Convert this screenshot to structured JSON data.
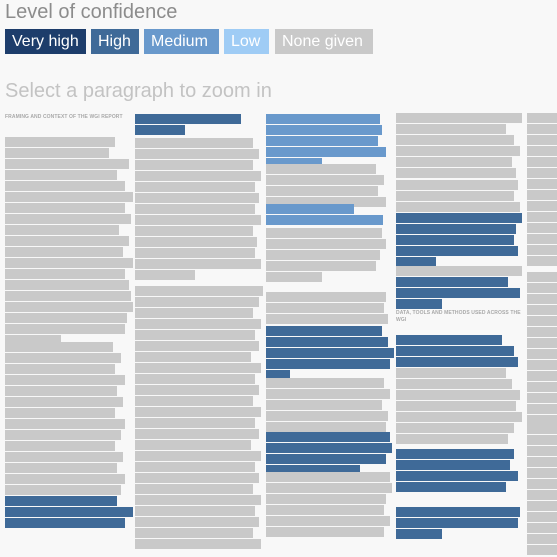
{
  "title": "Level of confidence",
  "prompt": "Select a paragraph to zoom in",
  "legend": [
    {
      "key": "very-high",
      "label": "Very high",
      "bg": "#1d3d6b",
      "fg": "#ffffff"
    },
    {
      "key": "high",
      "label": "High",
      "bg": "#3f6a98",
      "fg": "#ffffff"
    },
    {
      "key": "medium",
      "label": "Medium",
      "bg": "#6999cc",
      "fg": "#ffffff"
    },
    {
      "key": "low",
      "label": "Low",
      "bg": "#9fccf5",
      "fg": "#ffffff"
    },
    {
      "key": "none",
      "label": "None given",
      "bg": "#c9c9c9",
      "fg": "#ffffff"
    }
  ],
  "colors": {
    "none": "#c9c9c9",
    "high": "#3f6a98",
    "medium": "#6999cc",
    "very-high": "#1d3d6b",
    "low": "#9fccf5"
  },
  "headings": {
    "framing": "FRAMING AND CONTEXT OF THE WGI REPORT",
    "data_tools": "DATA, TOOLS AND METHODS USED ACROSS THE WGI"
  }
}
